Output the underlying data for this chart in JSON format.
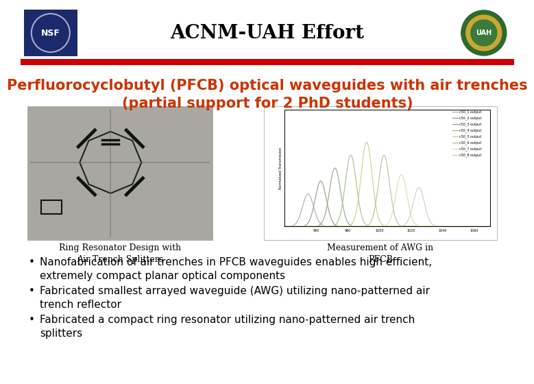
{
  "title": "ACNM-UAH Effort",
  "title_fontsize": 20,
  "subtitle": "Perfluorocyclobutyl (PFCB) optical waveguides with air trenches\n(partial support for 2 PhD students)",
  "subtitle_fontsize": 15,
  "subtitle_color": "#cc3300",
  "red_line_color": "#cc0000",
  "background_color": "#ffffff",
  "caption_left": "Ring Resonator Design with\nAir Trench Splitters",
  "caption_right": "Measurement of AWG in\nPFCB",
  "bullet_points": [
    "Nanofabrication of air trenches in PFCB waveguides enables high efficient,\nextremely compact planar optical components",
    "Fabricated smallest arrayed waveguide (AWG) utilizing nano-patterned air\ntrench reflector",
    "Fabricated a compact ring resonator utilizing nano-patterned air trench\nsplitters"
  ],
  "bullet_fontsize": 11,
  "caption_fontsize": 9
}
